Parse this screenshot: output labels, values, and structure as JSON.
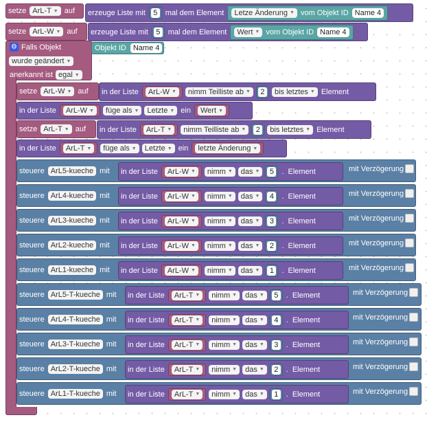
{
  "r1": {
    "setze": "setze",
    "var": "ArL-T",
    "auf": "auf",
    "erzeuge": "erzeuge Liste mit",
    "n": "5",
    "mal": "mal dem Element",
    "val": "Letze Änderung",
    "vom": "vom Objekt ID",
    "name": "Name 4"
  },
  "r2": {
    "setze": "setze",
    "var": "ArL-W",
    "auf": "auf",
    "erzeuge": "erzeuge Liste mit",
    "n": "5",
    "mal": "mal dem Element",
    "val": "Wert",
    "vom": "vom Objekt ID",
    "name": "Name 4"
  },
  "trigger": {
    "falls": "Falls Objekt",
    "objekt": "Objekt ID",
    "name": "Name 4",
    "geaendert": "wurde geändert",
    "anerkannt": "anerkannt ist",
    "egal": "egal"
  },
  "s1": {
    "setze": "setze",
    "var": "ArL-W",
    "auf": "auf",
    "inliste": "in der Liste",
    "list": "ArL-W",
    "nimm": "nimm Teilliste ab",
    "n": "2",
    "bis": "bis letztes",
    "el": "Element"
  },
  "a1": {
    "inliste": "in der Liste",
    "list": "ArL-W",
    "fuege": "füge als",
    "pos": "Letzte",
    "ein": "ein",
    "val": "Wert"
  },
  "s2": {
    "setze": "setze",
    "var": "ArL-T",
    "auf": "auf",
    "inliste": "in der Liste",
    "list": "ArL-T",
    "nimm": "nimm Teilliste ab",
    "n": "2",
    "bis": "bis letztes",
    "el": "Element"
  },
  "a2": {
    "inliste": "in der Liste",
    "list": "ArL-T",
    "fuege": "füge als",
    "pos": "Letzte",
    "ein": "ein",
    "val": "letzte Änderung"
  },
  "common": {
    "steuere": "steuere",
    "mit": "mit",
    "inliste": "in der Liste",
    "nimm": "nimm",
    "das": "das",
    "dot": ".",
    "el": "Element",
    "verz": "mit Verzögerung"
  },
  "controls": [
    {
      "target": "ArL5-kueche",
      "list": "ArL-W",
      "n": "5"
    },
    {
      "target": "ArL4-kueche",
      "list": "ArL-W",
      "n": "4"
    },
    {
      "target": "ArL3-kueche",
      "list": "ArL-W",
      "n": "3"
    },
    {
      "target": "ArL2-kueche",
      "list": "ArL-W",
      "n": "2"
    },
    {
      "target": "ArL1-kueche",
      "list": "ArL-W",
      "n": "1"
    },
    {
      "target": "ArL5-T-kueche",
      "list": "ArL-T",
      "n": "5"
    },
    {
      "target": "ArL4-T-kueche",
      "list": "ArL-T",
      "n": "4"
    },
    {
      "target": "ArL3-T-kueche",
      "list": "ArL-T",
      "n": "3"
    },
    {
      "target": "ArL2-T-kueche",
      "list": "ArL-T",
      "n": "2"
    },
    {
      "target": "ArL1-T-kueche",
      "list": "ArL-T",
      "n": "1"
    }
  ]
}
